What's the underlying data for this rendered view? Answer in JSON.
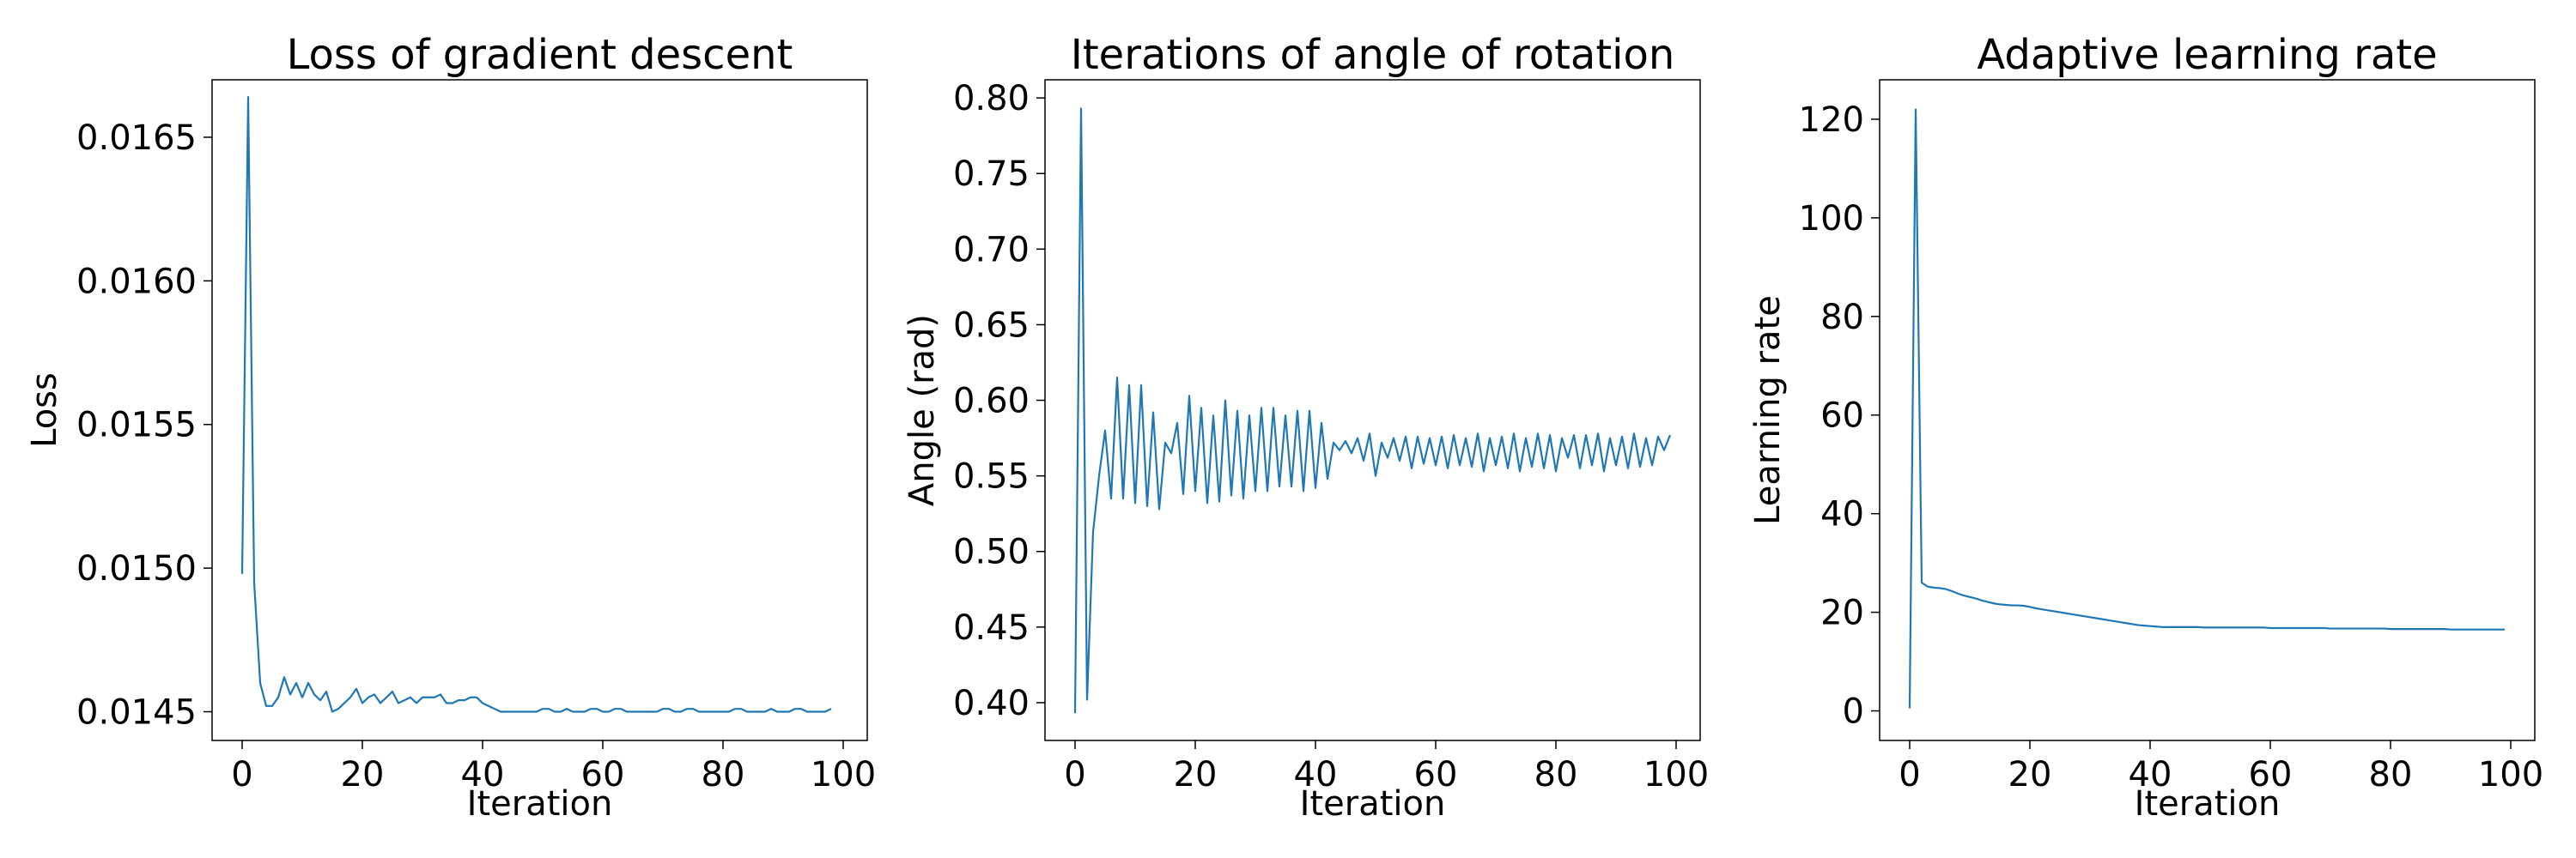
{
  "chart_data": [
    {
      "type": "line",
      "title": "Loss of gradient descent",
      "xlabel": "Iteration",
      "ylabel": "Loss",
      "xlim": [
        -5,
        104
      ],
      "ylim": [
        0.0144,
        0.0167
      ],
      "grid": false,
      "xticks": [
        0,
        20,
        40,
        60,
        80,
        100
      ],
      "xtick_labels": [
        "0",
        "20",
        "40",
        "60",
        "80",
        "100"
      ],
      "yticks": [
        0.0145,
        0.015,
        0.0155,
        0.016,
        0.0165
      ],
      "ytick_labels": [
        "0.0145",
        "0.0150",
        "0.0155",
        "0.0160",
        "0.0165"
      ],
      "series": [
        {
          "color": "#1f77b4",
          "y": [
            0.01498,
            0.01664,
            0.01495,
            0.0146,
            0.01452,
            0.01452,
            0.01455,
            0.01462,
            0.01456,
            0.0146,
            0.01455,
            0.0146,
            0.01456,
            0.01454,
            0.01457,
            0.0145,
            0.01451,
            0.01453,
            0.01455,
            0.01458,
            0.01453,
            0.01455,
            0.01456,
            0.01453,
            0.01455,
            0.01457,
            0.01453,
            0.01454,
            0.01455,
            0.01453,
            0.01455,
            0.01455,
            0.01455,
            0.01456,
            0.01453,
            0.01453,
            0.01454,
            0.01454,
            0.01455,
            0.01455,
            0.01453,
            0.01452,
            0.01451,
            0.0145,
            0.0145,
            0.0145,
            0.0145,
            0.0145,
            0.0145,
            0.0145,
            0.01451,
            0.01451,
            0.0145,
            0.0145,
            0.01451,
            0.0145,
            0.0145,
            0.0145,
            0.01451,
            0.01451,
            0.0145,
            0.0145,
            0.01451,
            0.01451,
            0.0145,
            0.0145,
            0.0145,
            0.0145,
            0.0145,
            0.0145,
            0.01451,
            0.01451,
            0.0145,
            0.0145,
            0.01451,
            0.01451,
            0.0145,
            0.0145,
            0.0145,
            0.0145,
            0.0145,
            0.0145,
            0.01451,
            0.01451,
            0.0145,
            0.0145,
            0.0145,
            0.0145,
            0.01451,
            0.0145,
            0.0145,
            0.0145,
            0.01451,
            0.01451,
            0.0145,
            0.0145,
            0.0145,
            0.0145,
            0.01451
          ]
        }
      ]
    },
    {
      "type": "line",
      "title": "Iterations of angle of rotation",
      "xlabel": "Iteration",
      "ylabel": "Angle (rad)",
      "xlim": [
        -5,
        104
      ],
      "ylim": [
        0.375,
        0.812
      ],
      "grid": false,
      "xticks": [
        0,
        20,
        40,
        60,
        80,
        100
      ],
      "xtick_labels": [
        "0",
        "20",
        "40",
        "60",
        "80",
        "100"
      ],
      "yticks": [
        0.4,
        0.45,
        0.5,
        0.55,
        0.6,
        0.65,
        0.7,
        0.75,
        0.8
      ],
      "ytick_labels": [
        "0.40",
        "0.45",
        "0.50",
        "0.55",
        "0.60",
        "0.65",
        "0.70",
        "0.75",
        "0.80"
      ],
      "series": [
        {
          "color": "#1f77b4",
          "y": [
            0.393,
            0.793,
            0.402,
            0.513,
            0.55,
            0.58,
            0.535,
            0.615,
            0.535,
            0.61,
            0.532,
            0.61,
            0.53,
            0.592,
            0.528,
            0.572,
            0.565,
            0.585,
            0.538,
            0.603,
            0.54,
            0.595,
            0.532,
            0.59,
            0.533,
            0.6,
            0.537,
            0.593,
            0.535,
            0.59,
            0.54,
            0.595,
            0.54,
            0.595,
            0.543,
            0.59,
            0.543,
            0.593,
            0.54,
            0.593,
            0.542,
            0.585,
            0.548,
            0.572,
            0.567,
            0.573,
            0.565,
            0.575,
            0.56,
            0.578,
            0.55,
            0.572,
            0.562,
            0.575,
            0.56,
            0.576,
            0.555,
            0.576,
            0.558,
            0.575,
            0.557,
            0.576,
            0.555,
            0.577,
            0.557,
            0.575,
            0.556,
            0.578,
            0.553,
            0.575,
            0.557,
            0.576,
            0.555,
            0.578,
            0.553,
            0.575,
            0.556,
            0.578,
            0.555,
            0.577,
            0.553,
            0.575,
            0.562,
            0.577,
            0.555,
            0.577,
            0.557,
            0.578,
            0.553,
            0.575,
            0.557,
            0.576,
            0.555,
            0.578,
            0.556,
            0.575,
            0.557,
            0.576,
            0.567,
            0.577
          ]
        }
      ]
    },
    {
      "type": "line",
      "title": "Adaptive learning rate",
      "xlabel": "Iteration",
      "ylabel": "Learning rate",
      "xlim": [
        -5,
        104
      ],
      "ylim": [
        -6,
        128
      ],
      "grid": false,
      "xticks": [
        0,
        20,
        40,
        60,
        80,
        100
      ],
      "xtick_labels": [
        "0",
        "20",
        "40",
        "60",
        "80",
        "100"
      ],
      "yticks": [
        0,
        20,
        40,
        60,
        80,
        100,
        120
      ],
      "ytick_labels": [
        "0",
        "20",
        "40",
        "60",
        "80",
        "100",
        "120"
      ],
      "series": [
        {
          "color": "#1f77b4",
          "y": [
            0.5,
            122.0,
            26.0,
            25.2,
            25.0,
            24.9,
            24.7,
            24.3,
            23.8,
            23.4,
            23.1,
            22.8,
            22.4,
            22.1,
            21.8,
            21.6,
            21.5,
            21.4,
            21.4,
            21.3,
            21.1,
            20.8,
            20.6,
            20.4,
            20.2,
            20.0,
            19.8,
            19.6,
            19.4,
            19.2,
            19.0,
            18.8,
            18.6,
            18.4,
            18.2,
            18.0,
            17.8,
            17.6,
            17.4,
            17.3,
            17.2,
            17.1,
            17.0,
            17.0,
            17.0,
            17.0,
            17.0,
            17.0,
            17.0,
            16.9,
            16.9,
            16.9,
            16.9,
            16.9,
            16.9,
            16.9,
            16.9,
            16.9,
            16.9,
            16.9,
            16.8,
            16.8,
            16.8,
            16.8,
            16.8,
            16.8,
            16.8,
            16.8,
            16.8,
            16.8,
            16.7,
            16.7,
            16.7,
            16.7,
            16.7,
            16.7,
            16.7,
            16.7,
            16.7,
            16.7,
            16.6,
            16.6,
            16.6,
            16.6,
            16.6,
            16.6,
            16.6,
            16.6,
            16.6,
            16.6,
            16.5,
            16.5,
            16.5,
            16.5,
            16.5,
            16.5,
            16.5,
            16.5,
            16.5,
            16.5
          ]
        }
      ]
    }
  ]
}
